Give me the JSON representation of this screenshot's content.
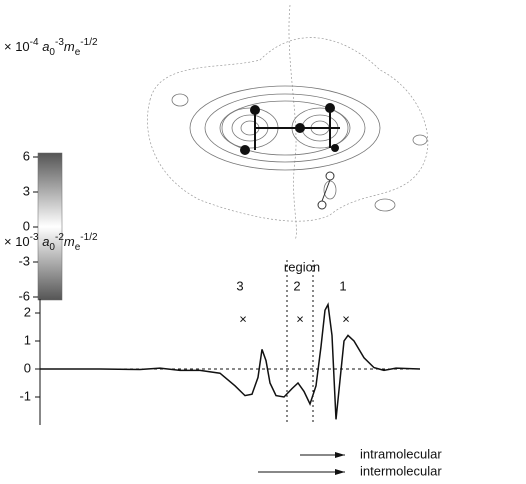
{
  "chart_data": [
    {
      "type": "colorbar",
      "unit_label": [
        "× 10",
        "-4",
        " a",
        "0",
        "-3",
        "m",
        "e",
        "-1/2"
      ],
      "ylim": [
        -6,
        6
      ],
      "yticks": [
        6,
        3,
        0,
        -3,
        -6
      ]
    },
    {
      "type": "line",
      "unit_label": [
        "× 10",
        "-3",
        " a",
        "0",
        "-2",
        "m",
        "e",
        "-1/2"
      ],
      "xlim": [
        0,
        380
      ],
      "ylim": [
        -2,
        2.5
      ],
      "yticks": [
        2,
        1,
        0,
        -1
      ],
      "color": "#111",
      "x": [
        0,
        60,
        100,
        120,
        140,
        160,
        180,
        195,
        205,
        212,
        218,
        222,
        226,
        230,
        236,
        244,
        252,
        258,
        264,
        270,
        276,
        281,
        285,
        288,
        292,
        296,
        300,
        304,
        308,
        314,
        324,
        334,
        344,
        356,
        380
      ],
      "values": [
        0,
        0,
        -0.02,
        0.03,
        -0.05,
        -0.05,
        -0.15,
        -0.6,
        -0.95,
        -0.9,
        -0.3,
        0.7,
        0.3,
        -0.5,
        -0.95,
        -1.0,
        -0.7,
        -0.5,
        -0.8,
        -1.25,
        -0.6,
        0.8,
        2.1,
        2.3,
        1.2,
        -1.8,
        -0.4,
        1.0,
        1.2,
        1.0,
        0.4,
        0.05,
        -0.05,
        0.03,
        0
      ],
      "region_title": "region",
      "regions": [
        {
          "label": "3",
          "x": 203
        },
        {
          "label": "2",
          "x": 260
        },
        {
          "label": "1",
          "x": 306
        }
      ],
      "region_marker": "×",
      "region_marker_y": 1.75,
      "region_boundaries": [
        247,
        273
      ],
      "arrows": [
        "intramolecular",
        "intermolecular"
      ]
    }
  ]
}
